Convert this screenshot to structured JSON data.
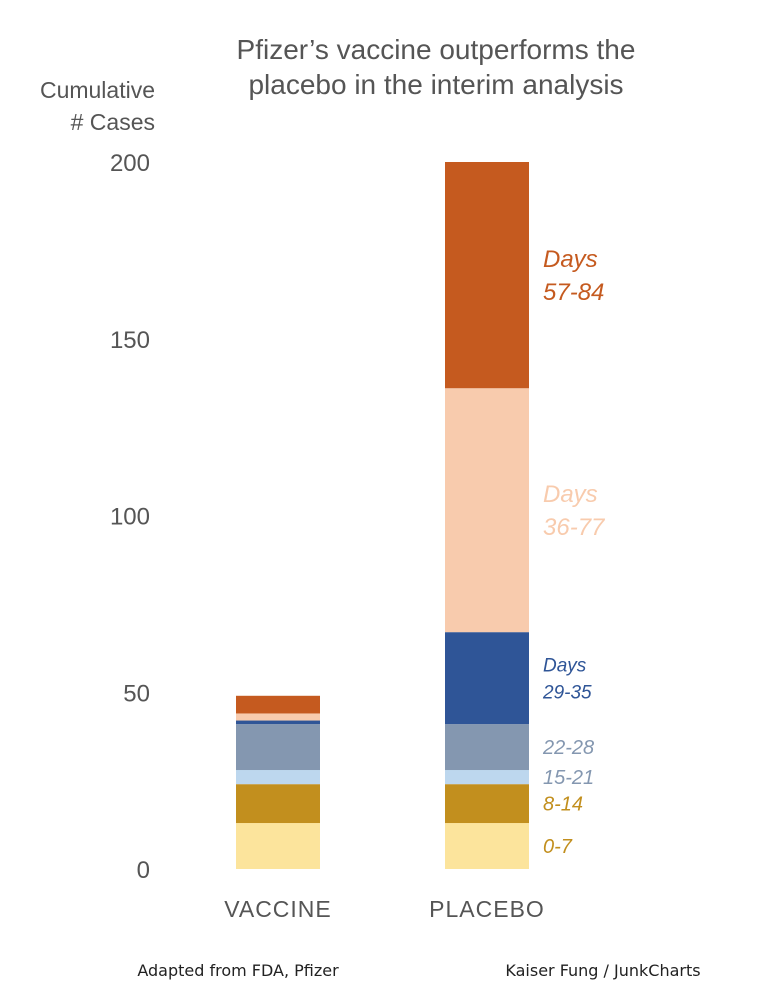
{
  "chart_data": {
    "type": "bar",
    "stacked": true,
    "title_lines": [
      "Pfizer’s vaccine outperforms the",
      "placebo in the interim analysis"
    ],
    "ylabel_lines": [
      "Cumulative",
      "# Cases"
    ],
    "categories": [
      "VACCINE",
      "PLACEBO"
    ],
    "ylim": [
      0,
      200
    ],
    "yticks": [
      "0",
      "50",
      "100",
      "150",
      "200"
    ],
    "grid": false,
    "series": [
      {
        "name": "0-7",
        "label_lines": [
          "0-7"
        ],
        "color": "#FCE49C",
        "label_color": "#C28F1E",
        "values": [
          13,
          13
        ]
      },
      {
        "name": "8-14",
        "label_lines": [
          "8-14"
        ],
        "color": "#C28F1E",
        "label_color": "#C28F1E",
        "values": [
          11,
          11
        ]
      },
      {
        "name": "15-21",
        "label_lines": [
          "15-21"
        ],
        "color": "#BDD7EE",
        "label_color": "#8497B0",
        "values": [
          4,
          4
        ]
      },
      {
        "name": "22-28",
        "label_lines": [
          "22-28"
        ],
        "color": "#8497B0",
        "label_color": "#8497B0",
        "values": [
          13,
          13
        ]
      },
      {
        "name": "29-35",
        "label_lines": [
          "Days",
          "29-35"
        ],
        "color": "#2F5597",
        "label_color": "#2F5597",
        "values": [
          1,
          26
        ]
      },
      {
        "name": "36-77",
        "label_lines": [
          "Days",
          "36-77"
        ],
        "color": "#F8CBAD",
        "label_color": "#F8CBAD",
        "values": [
          2,
          69
        ]
      },
      {
        "name": "57-84",
        "label_lines": [
          "Days",
          "57-84"
        ],
        "color": "#C55A1F",
        "label_color": "#C55A1F",
        "values": [
          5,
          64
        ]
      }
    ]
  },
  "footer": {
    "left": "Adapted from FDA, Pfizer",
    "right": "Kaiser Fung / JunkCharts"
  }
}
